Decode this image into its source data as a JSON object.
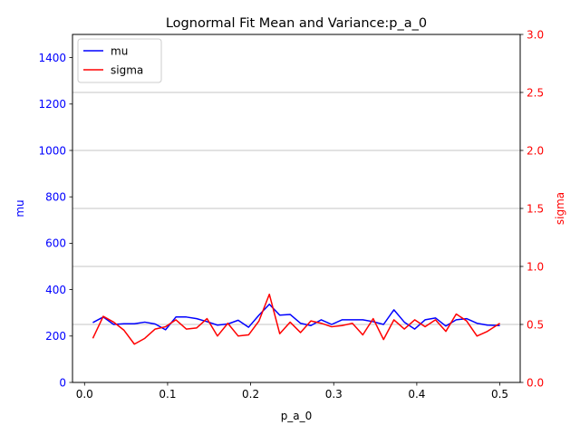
{
  "chart_data": {
    "type": "line",
    "title": "Lognormal Fit Mean and Variance:p_a_0",
    "xlabel": "p_a_0",
    "ylabel_left": "mu",
    "ylabel_right": "sigma",
    "xlim": [
      -0.0145,
      0.5245
    ],
    "ylim_left": [
      0,
      1500
    ],
    "ylim_right": [
      0,
      3.0
    ],
    "x_ticks": [
      0.0,
      0.1,
      0.2,
      0.3,
      0.4,
      0.5
    ],
    "x_tick_labels": [
      "0.0",
      "0.1",
      "0.2",
      "0.3",
      "0.4",
      "0.5"
    ],
    "y_left_ticks": [
      0,
      200,
      400,
      600,
      800,
      1000,
      1200,
      1400
    ],
    "y_left_tick_labels": [
      "0",
      "200",
      "400",
      "600",
      "800",
      "1000",
      "1200",
      "1400"
    ],
    "y_right_ticks": [
      0.0,
      0.5,
      1.0,
      1.5,
      2.0,
      2.5,
      3.0
    ],
    "y_right_tick_labels": [
      "0.0",
      "0.5",
      "1.0",
      "1.5",
      "2.0",
      "2.5",
      "3.0"
    ],
    "grid": "horizontal lines at right-axis ticks",
    "legend_position": "upper-left",
    "x": [
      0.01,
      0.0225,
      0.035,
      0.0475,
      0.06,
      0.0725,
      0.085,
      0.0975,
      0.11,
      0.1225,
      0.135,
      0.1475,
      0.16,
      0.1725,
      0.185,
      0.1975,
      0.21,
      0.2225,
      0.235,
      0.2475,
      0.26,
      0.2725,
      0.285,
      0.2975,
      0.31,
      0.3225,
      0.335,
      0.3475,
      0.36,
      0.3725,
      0.385,
      0.3975,
      0.41,
      0.4225,
      0.435,
      0.4475,
      0.46,
      0.4725,
      0.485,
      0.5
    ],
    "series": [
      {
        "name": "mu",
        "color": "#0000ff",
        "axis": "left",
        "values": [
          258,
          282,
          250,
          253,
          253,
          260,
          252,
          227,
          282,
          282,
          275,
          262,
          247,
          252,
          268,
          238,
          290,
          337,
          290,
          293,
          255,
          245,
          270,
          250,
          270,
          270,
          270,
          262,
          250,
          313,
          260,
          230,
          270,
          278,
          243,
          270,
          275,
          255,
          247,
          245
        ]
      },
      {
        "name": "sigma",
        "color": "#ff0000",
        "axis": "right",
        "values": [
          0.38,
          0.57,
          0.52,
          0.45,
          0.33,
          0.38,
          0.46,
          0.48,
          0.54,
          0.46,
          0.47,
          0.55,
          0.4,
          0.51,
          0.4,
          0.41,
          0.53,
          0.76,
          0.42,
          0.52,
          0.43,
          0.53,
          0.51,
          0.48,
          0.49,
          0.51,
          0.41,
          0.55,
          0.37,
          0.54,
          0.46,
          0.54,
          0.48,
          0.54,
          0.44,
          0.59,
          0.53,
          0.4,
          0.44,
          0.51
        ]
      }
    ]
  }
}
